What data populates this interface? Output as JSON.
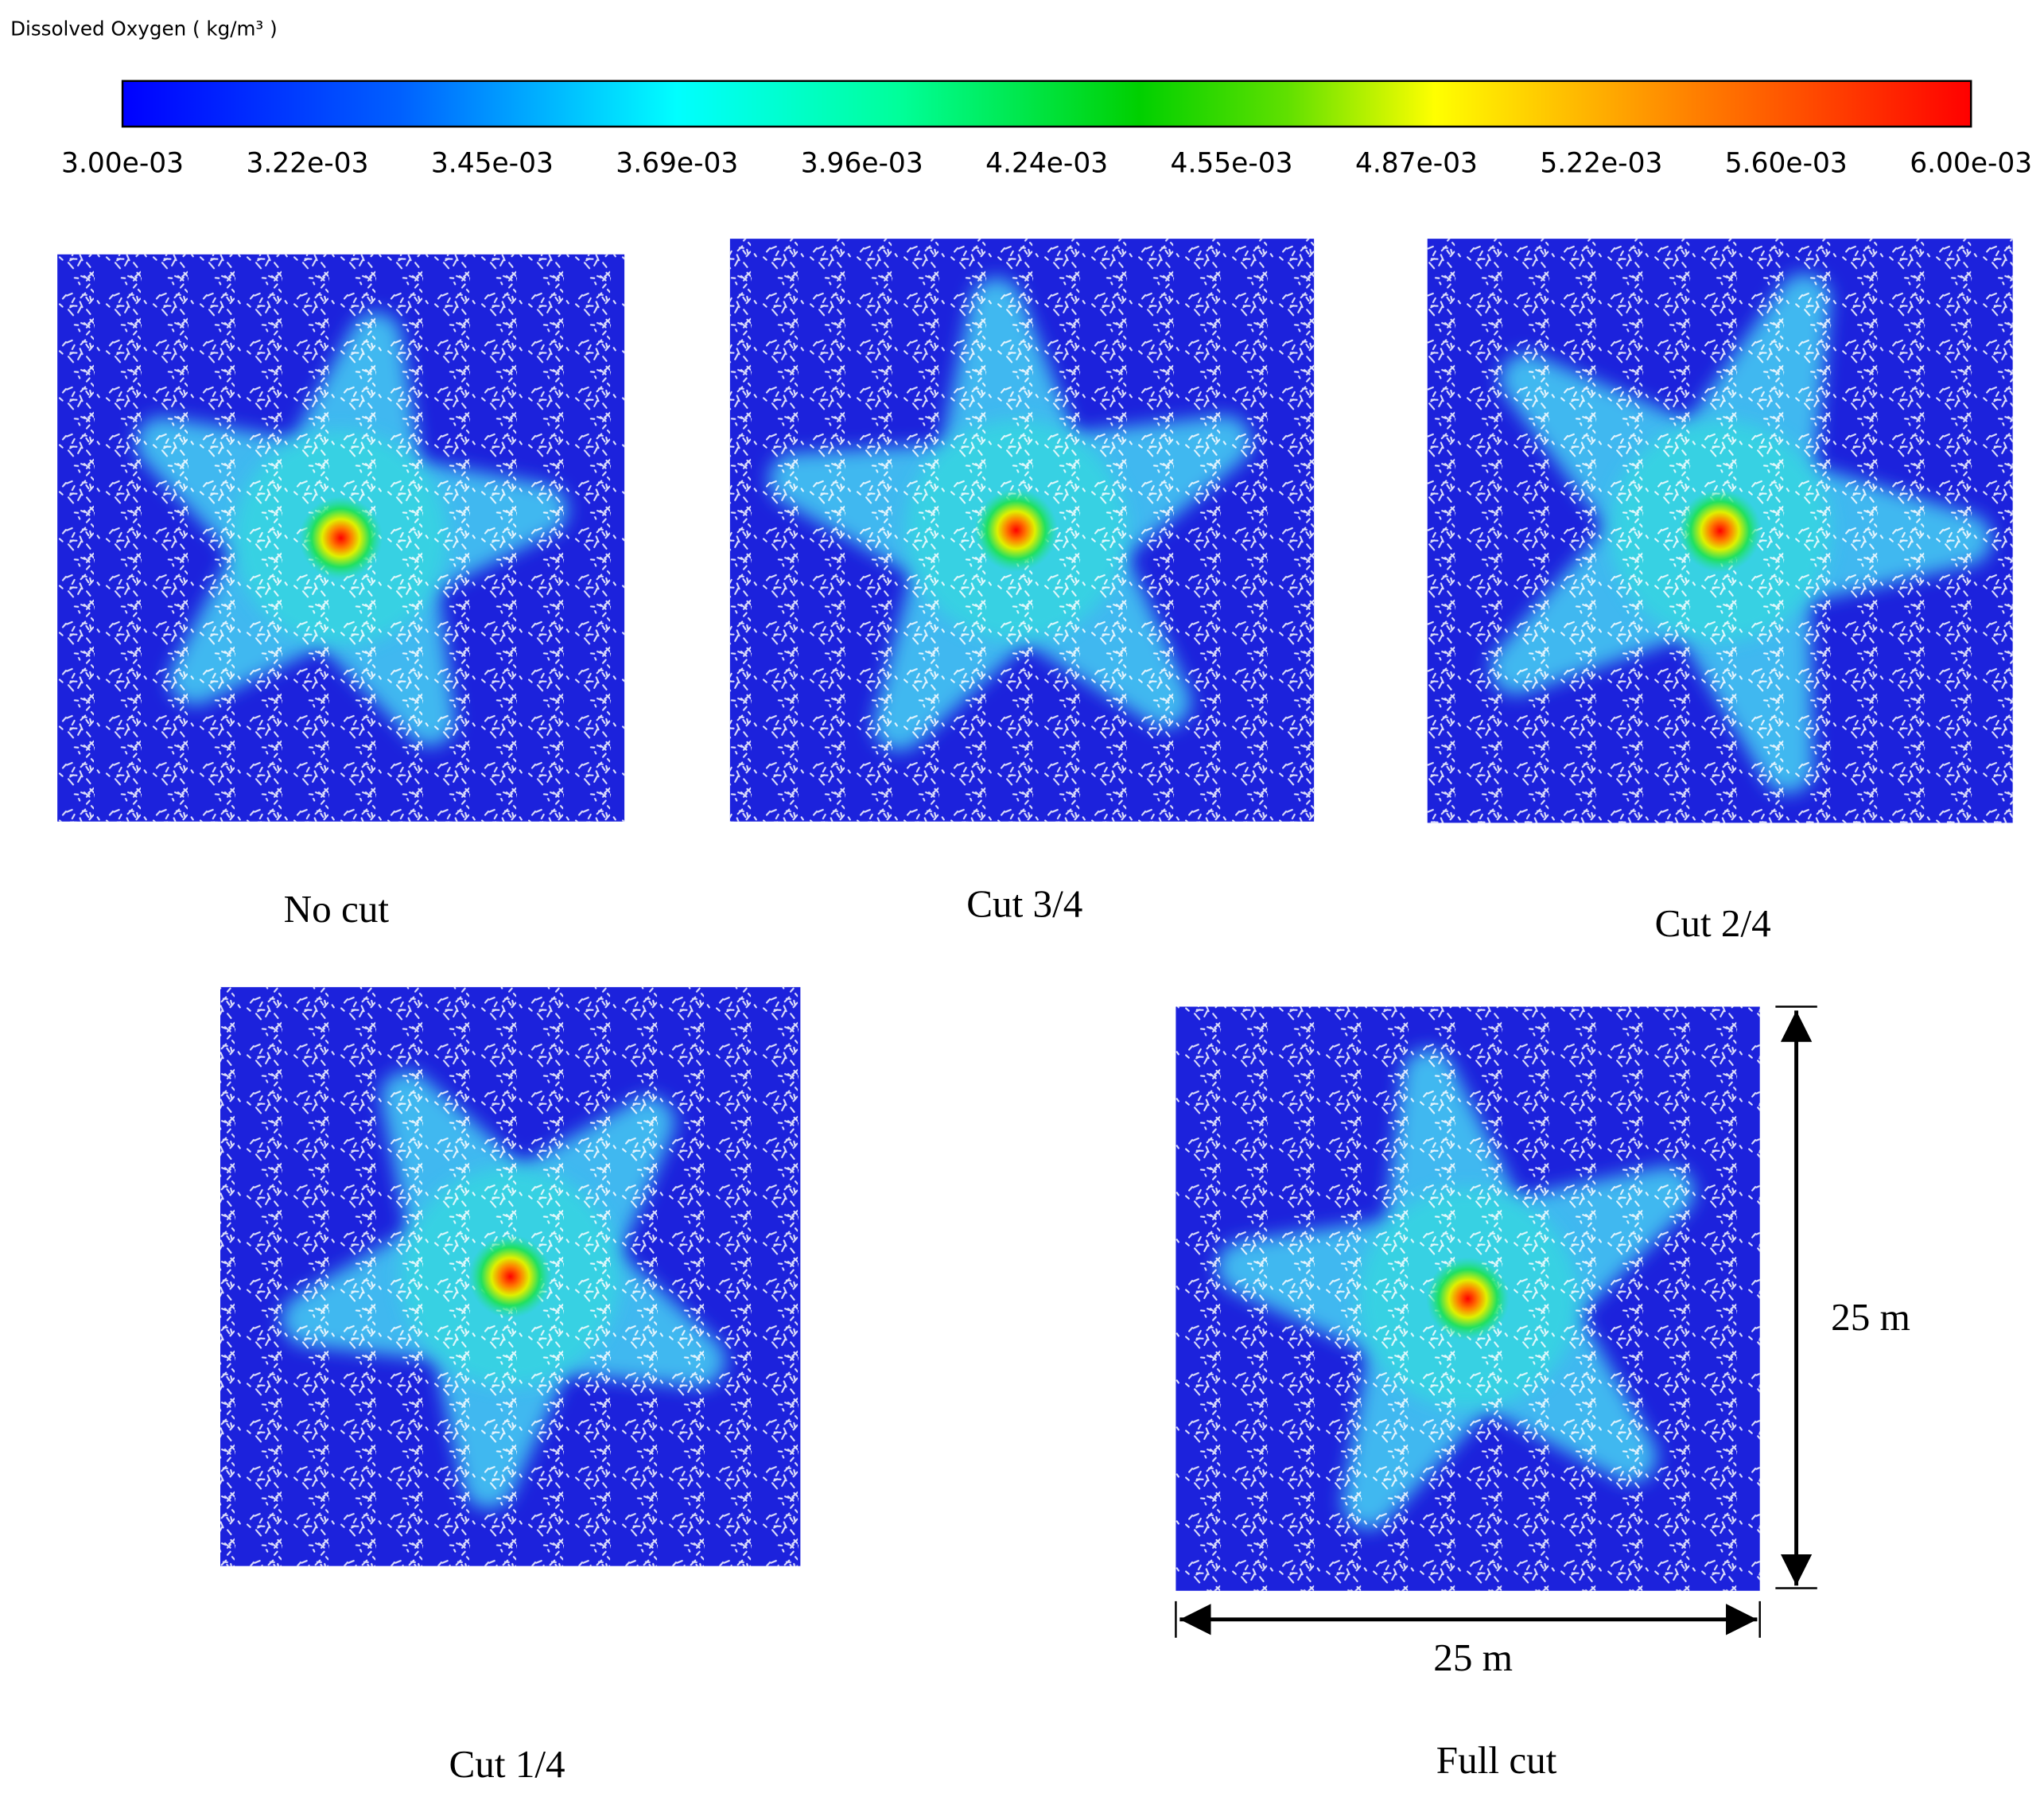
{
  "colorbar": {
    "title": "Dissolved Oxygen ( kg/m³ )",
    "tick_labels": [
      "3.00e-03",
      "3.22e-03",
      "3.45e-03",
      "3.69e-03",
      "3.96e-03",
      "4.24e-03",
      "4.55e-03",
      "4.87e-03",
      "5.22e-03",
      "5.60e-03",
      "6.00e-03"
    ]
  },
  "panels": [
    {
      "label": "No cut"
    },
    {
      "label": "Cut 3/4"
    },
    {
      "label": "Cut 2/4"
    },
    {
      "label": "Cut 1/4"
    },
    {
      "label": "Full cut"
    }
  ],
  "dimensions": {
    "height": "25 m",
    "width": "25 m"
  }
}
